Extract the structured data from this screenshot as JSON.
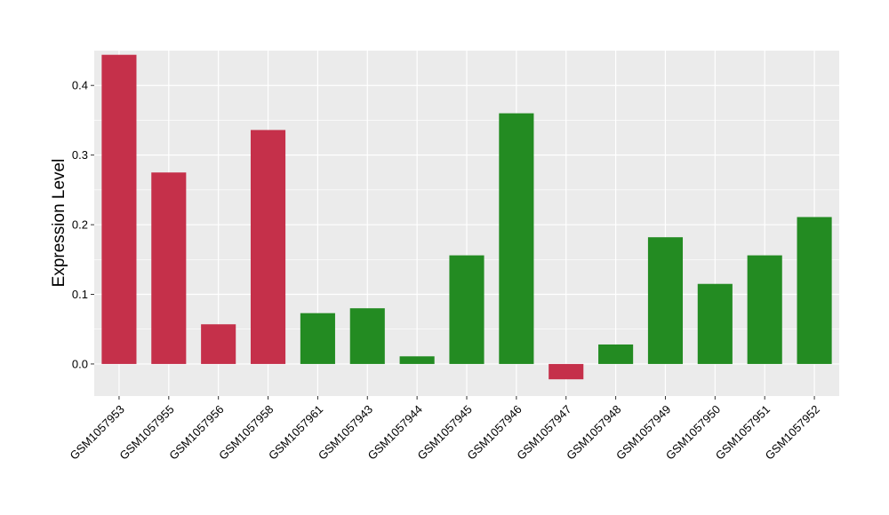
{
  "chart_data": {
    "type": "bar",
    "ylabel": "Expression Level",
    "xlabel": "",
    "ylim": [
      -0.046,
      0.45
    ],
    "yticks": [
      0.0,
      0.1,
      0.2,
      0.3,
      0.4
    ],
    "ytick_labels": [
      "0.0",
      "0.1",
      "0.2",
      "0.3",
      "0.4"
    ],
    "grid": true,
    "colors": {
      "group_a": "#c5304a",
      "group_b": "#238b22",
      "panel": "#ebebeb",
      "gridline": "#ffffff"
    },
    "categories": [
      "GSM1057953",
      "GSM1057955",
      "GSM1057956",
      "GSM1057958",
      "GSM1057961",
      "GSM1057943",
      "GSM1057944",
      "GSM1057945",
      "GSM1057946",
      "GSM1057947",
      "GSM1057948",
      "GSM1057949",
      "GSM1057950",
      "GSM1057951",
      "GSM1057952"
    ],
    "values": [
      0.444,
      0.275,
      0.057,
      0.336,
      0.073,
      0.08,
      0.011,
      0.156,
      0.36,
      -0.022,
      0.028,
      0.182,
      0.115,
      0.156,
      0.211
    ],
    "bar_colors": [
      "#c5304a",
      "#c5304a",
      "#c5304a",
      "#c5304a",
      "#238b22",
      "#238b22",
      "#238b22",
      "#238b22",
      "#238b22",
      "#c5304a",
      "#238b22",
      "#238b22",
      "#238b22",
      "#238b22",
      "#238b22"
    ]
  }
}
